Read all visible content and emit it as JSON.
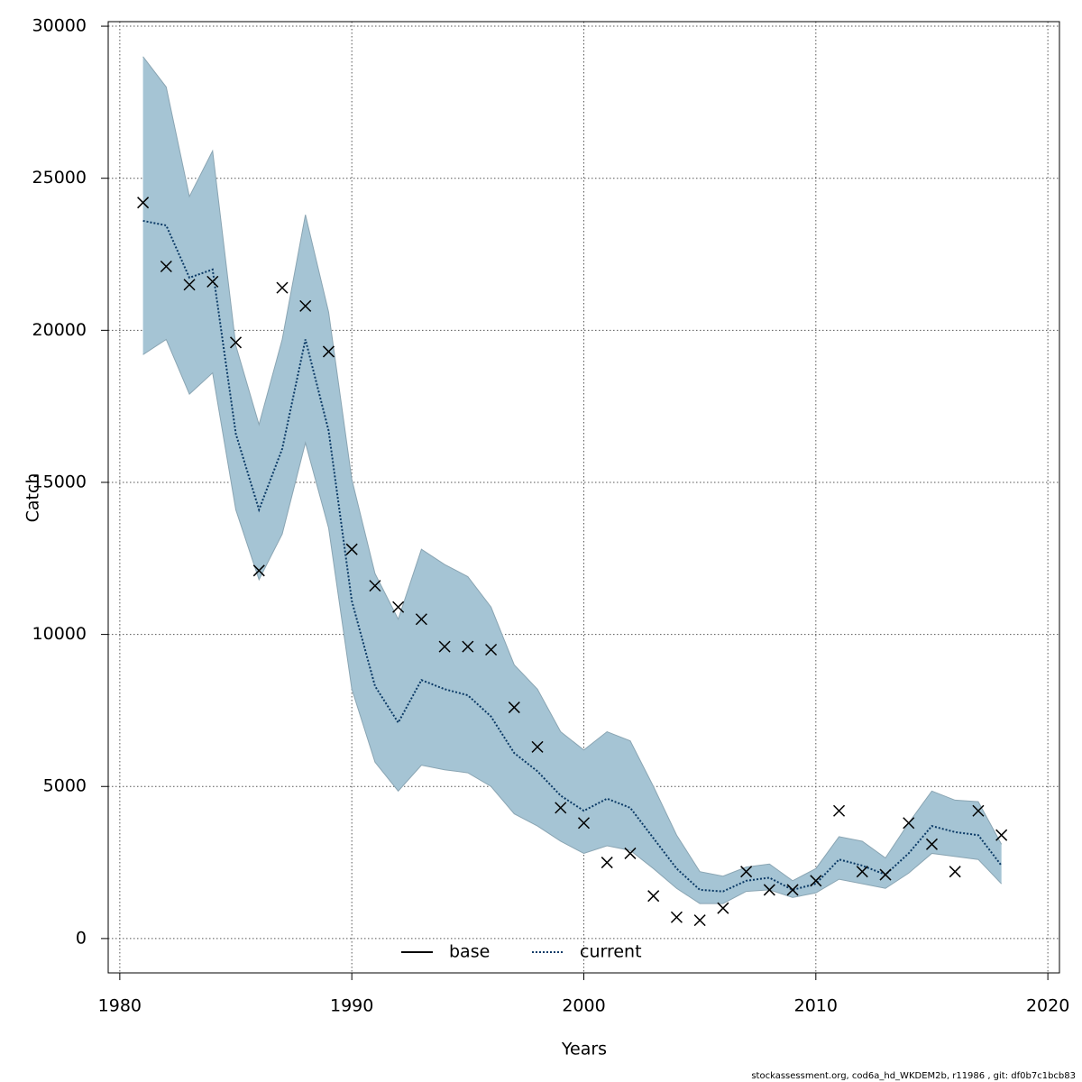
{
  "chart_data": {
    "type": "line",
    "x_label": "Years",
    "y_label": "Catch",
    "footer": "stockassessment.org, cod6a_hd_WKDEM2b, r11986 , git: df0b7c1bcb83",
    "x": [
      1981,
      1982,
      1983,
      1984,
      1985,
      1986,
      1987,
      1988,
      1989,
      1990,
      1991,
      1992,
      1993,
      1994,
      1995,
      1996,
      1997,
      1998,
      1999,
      2000,
      2001,
      2002,
      2003,
      2004,
      2005,
      2006,
      2007,
      2008,
      2009,
      2010,
      2011,
      2012,
      2013,
      2014,
      2015,
      2016,
      2017,
      2018
    ],
    "series": [
      {
        "name": "current",
        "color": "#0b3a66",
        "dashed": true,
        "values": [
          23600,
          23450,
          21730,
          22000,
          16600,
          14100,
          16100,
          19700,
          16700,
          11100,
          8300,
          7100,
          8500,
          8200,
          8000,
          7300,
          6100,
          5500,
          4700,
          4200,
          4600,
          4300,
          3300,
          2300,
          1600,
          1550,
          1900,
          2000,
          1600,
          1800,
          2600,
          2400,
          2100,
          2800,
          3700,
          3500,
          3400,
          2400
        ]
      }
    ],
    "band": {
      "color": "#a5c4d4",
      "edge": "#8aa5b3",
      "upper": [
        29000,
        28000,
        24400,
        25900,
        19500,
        16900,
        19700,
        23800,
        20600,
        15100,
        12000,
        10500,
        12800,
        12300,
        11900,
        10900,
        9000,
        8200,
        6800,
        6200,
        6800,
        6500,
        5000,
        3400,
        2200,
        2050,
        2350,
        2450,
        1900,
        2300,
        3350,
        3200,
        2650,
        3800,
        4850,
        4550,
        4500,
        3100
      ],
      "lower": [
        19200,
        19700,
        17900,
        18600,
        14100,
        11800,
        13300,
        16300,
        13500,
        8200,
        5800,
        4850,
        5700,
        5550,
        5450,
        5000,
        4100,
        3700,
        3200,
        2800,
        3050,
        2900,
        2300,
        1650,
        1150,
        1150,
        1550,
        1600,
        1350,
        1500,
        1950,
        1800,
        1650,
        2150,
        2800,
        2700,
        2600,
        1800
      ]
    },
    "observed": {
      "color": "#000000",
      "values": [
        24200,
        22100,
        21500,
        21600,
        19600,
        12100,
        21400,
        20800,
        19300,
        12800,
        11600,
        10900,
        10500,
        9600,
        9600,
        9500,
        7600,
        6300,
        4300,
        3800,
        2500,
        2800,
        1400,
        700,
        600,
        1000,
        2200,
        1600,
        1600,
        1900,
        4200,
        2200,
        2100,
        3800,
        3100,
        2200,
        4200,
        3400
      ]
    },
    "legend": [
      {
        "name": "base",
        "color": "#000000",
        "dashed": false
      },
      {
        "name": "current",
        "color": "#0b3a66",
        "dashed": true
      }
    ],
    "legend_position": "bottom",
    "xlim": [
      1979.5,
      2020.5
    ],
    "ylim": [
      -1130,
      30150
    ],
    "xticks": [
      1980,
      1990,
      2000,
      2010,
      2020
    ],
    "yticks": [
      0,
      5000,
      10000,
      15000,
      20000,
      25000,
      30000
    ],
    "grid": true
  }
}
